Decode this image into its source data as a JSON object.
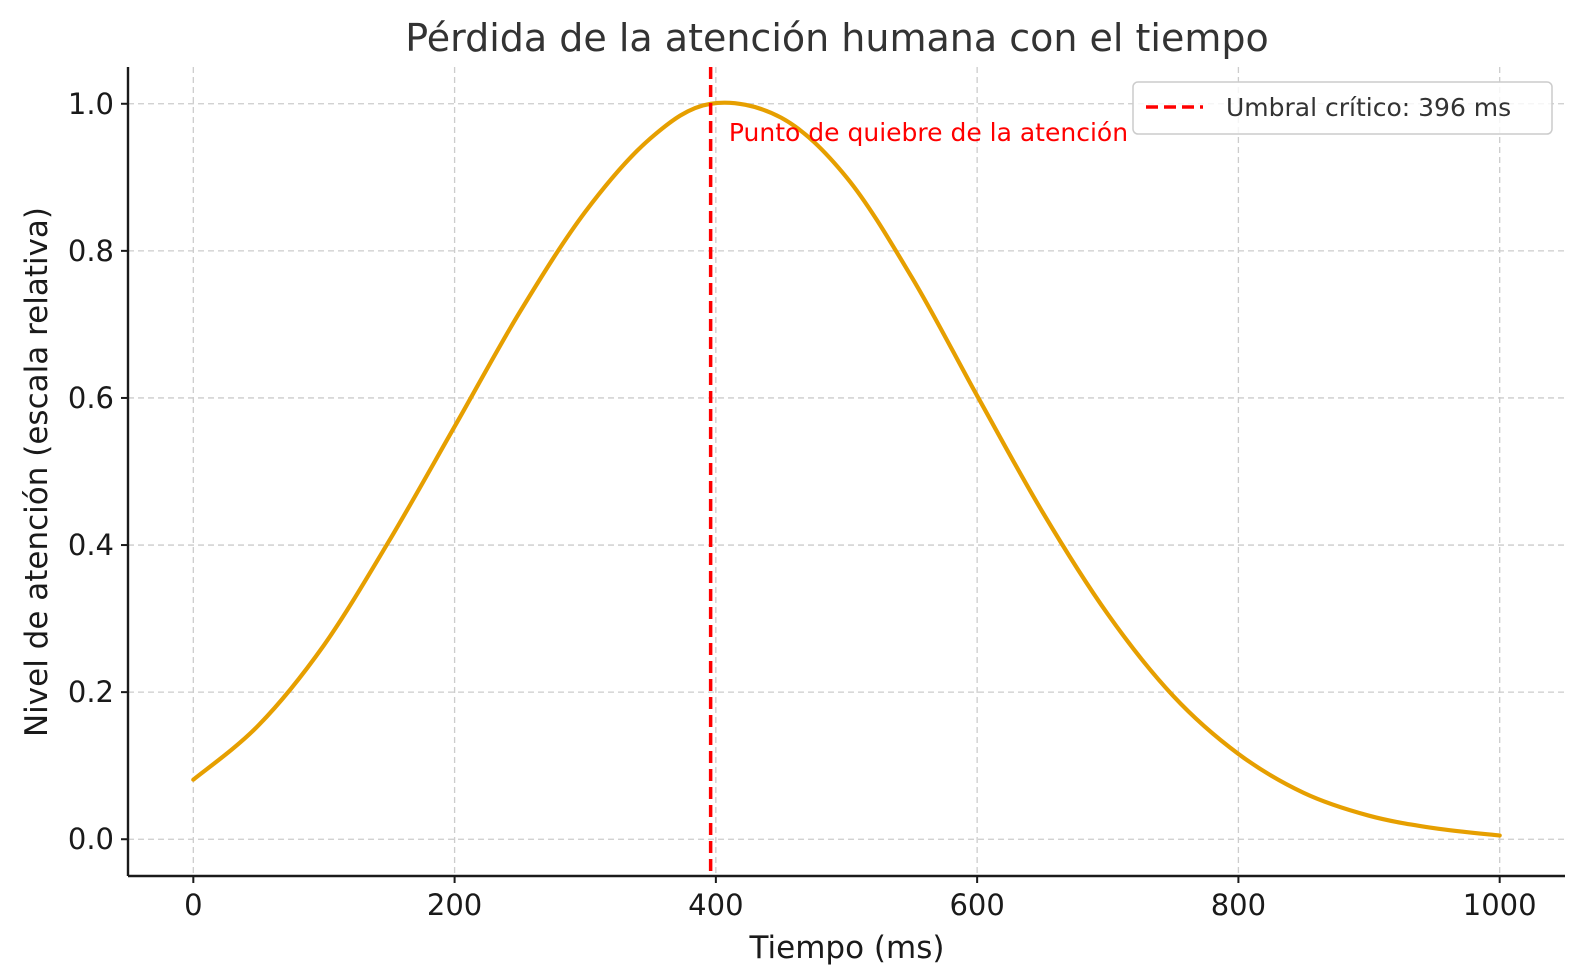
{
  "chart_data": {
    "type": "line",
    "title": "Pérdida de la atención humana con el tiempo",
    "xlabel": "Tiempo (ms)",
    "ylabel": "Nivel de atención (escala relativa)",
    "xlim": [
      -50,
      1050
    ],
    "ylim": [
      -0.05,
      1.05
    ],
    "xticks": [
      0,
      200,
      400,
      600,
      800,
      1000
    ],
    "yticks": [
      0.0,
      0.2,
      0.4,
      0.6,
      0.8,
      1.0
    ],
    "xtick_labels": [
      "0",
      "200",
      "400",
      "600",
      "800",
      "1000"
    ],
    "ytick_labels": [
      "0.0",
      "0.2",
      "0.4",
      "0.6",
      "0.8",
      "1.0"
    ],
    "grid": true,
    "legend_position": "top-right",
    "series": [
      {
        "color": "#E69F00",
        "x": [
          0,
          50,
          100,
          150,
          200,
          250,
          300,
          350,
          396,
          450,
          500,
          550,
          600,
          650,
          700,
          750,
          800,
          850,
          900,
          950,
          1000
        ],
        "y": [
          0.081,
          0.155,
          0.264,
          0.406,
          0.561,
          0.717,
          0.853,
          0.953,
          1.0,
          0.981,
          0.9,
          0.764,
          0.603,
          0.445,
          0.306,
          0.195,
          0.116,
          0.063,
          0.032,
          0.015,
          0.005
        ]
      }
    ],
    "vline": {
      "x": 396,
      "color": "#FF0000",
      "legend_label": "Umbral crítico: 396 ms"
    },
    "annotation": {
      "text": "Punto de quiebre de la atención",
      "x": 410,
      "y": 0.96,
      "color": "#FF0000"
    }
  }
}
